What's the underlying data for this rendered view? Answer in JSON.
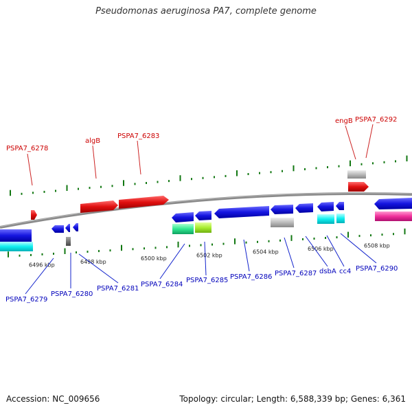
{
  "title": "Pseudomonas aeruginosa PA7, complete genome",
  "footer": {
    "accession": "Accession: NC_009656",
    "topology": "Topology: circular; Length: 6,588,339 bp; Genes: 6,361"
  },
  "colors": {
    "plus_strand": "#dd1111",
    "minus_strand": "#1111dd",
    "backbone": "#8a8a8a",
    "ticks": "#117711",
    "plus_label": "#cc0000",
    "minus_label": "#0000bb"
  },
  "kbp_ticks": [
    "6496 kbp",
    "6498 kbp",
    "6500 kbp",
    "6502 kbp",
    "6504 kbp",
    "6506 kbp",
    "6508 kbp"
  ],
  "genes_plus": [
    {
      "label": "PSPA7_6278"
    },
    {
      "label": "algB"
    },
    {
      "label": "PSPA7_6283"
    },
    {
      "label": "engB"
    },
    {
      "label": "PSPA7_6292"
    }
  ],
  "genes_minus": [
    {
      "label": "PSPA7_6279"
    },
    {
      "label": "PSPA7_6280"
    },
    {
      "label": "PSPA7_6281"
    },
    {
      "label": "PSPA7_6284"
    },
    {
      "label": "PSPA7_6285"
    },
    {
      "label": "PSPA7_6286"
    },
    {
      "label": "PSPA7_6287"
    },
    {
      "label": "dsbA"
    },
    {
      "label": "cc4"
    },
    {
      "label": "PSPA7_6290"
    }
  ]
}
